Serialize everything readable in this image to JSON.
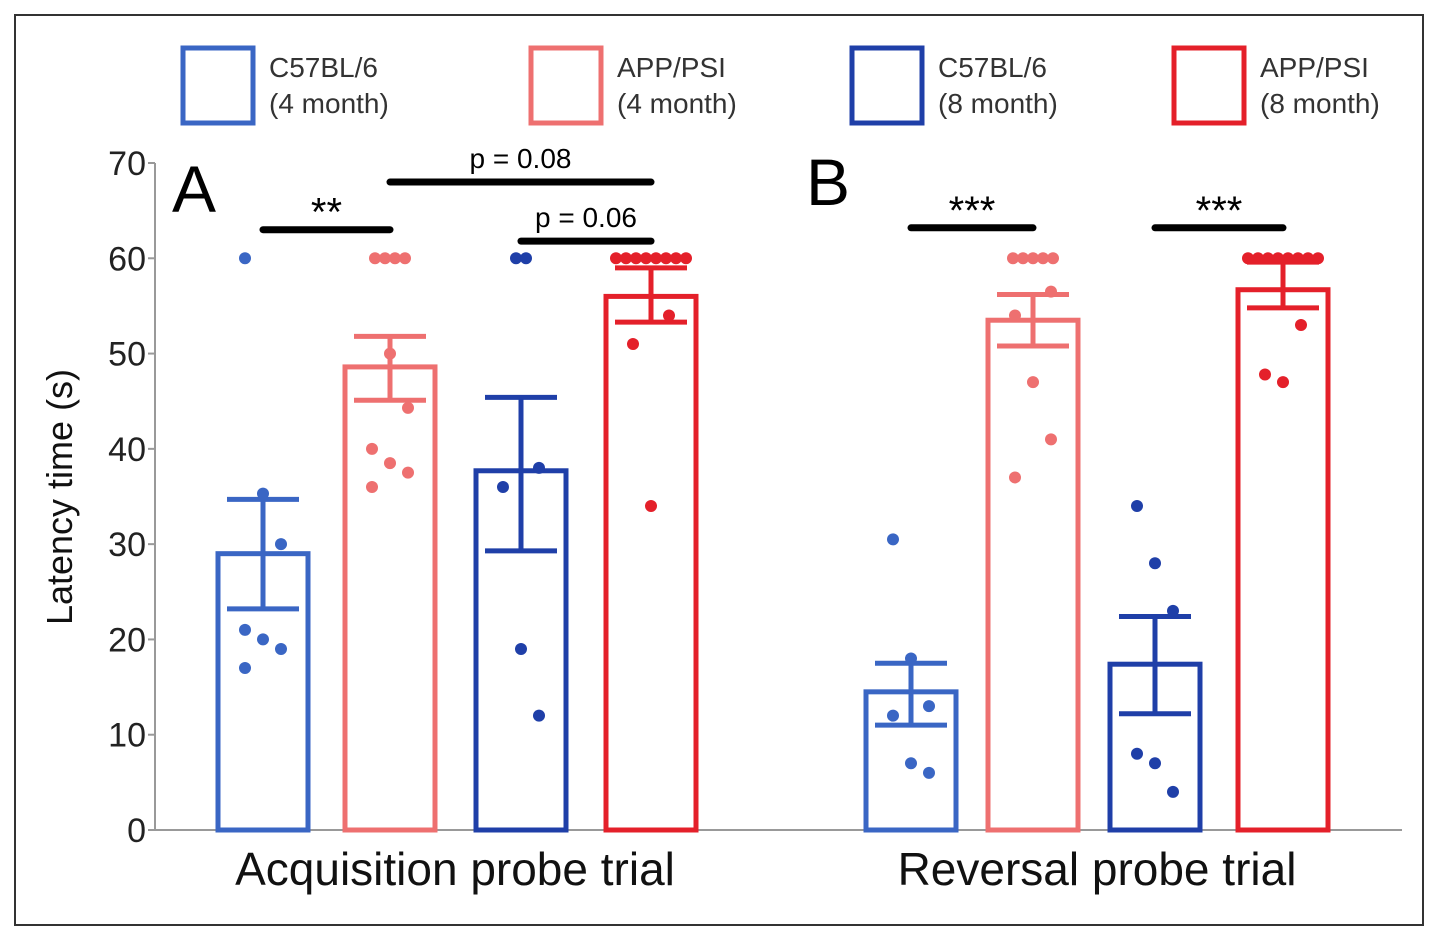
{
  "chart_data": {
    "type": "bar",
    "ylabel": "Latency time (s)",
    "ylim": [
      0,
      70
    ],
    "yticks": [
      0,
      10,
      20,
      30,
      40,
      50,
      60,
      70
    ],
    "grid": false,
    "legend_placement": "top",
    "legend": [
      {
        "line1": "C57BL/6",
        "line2": "(4 month)",
        "color": "#3a66c4"
      },
      {
        "line1": "APP/PSI",
        "line2": "(4 month)",
        "color": "#ee7070"
      },
      {
        "line1": "C57BL/6",
        "line2": "(8 month)",
        "color": "#1f3fa8"
      },
      {
        "line1": "APP/PSI",
        "line2": "(8 month)",
        "color": "#e4202a"
      }
    ],
    "panels": [
      {
        "letter": "A",
        "xlabel": "Acquisition probe trial",
        "bars": [
          {
            "mean": 29,
            "err_high": 34.7,
            "err_low": 23.2,
            "points": [
              60,
              35.3,
              30,
              21,
              20,
              19,
              17
            ]
          },
          {
            "mean": 48.6,
            "err_high": 51.8,
            "err_low": 45.1,
            "points": [
              60,
              60,
              60,
              60,
              50,
              44.3,
              40,
              38.5,
              37.5,
              36
            ]
          },
          {
            "mean": 37.7,
            "err_high": 45.4,
            "err_low": 29.3,
            "points": [
              60,
              60,
              38,
              36,
              19,
              12
            ]
          },
          {
            "mean": 56,
            "err_high": 59,
            "err_low": 53.3,
            "points": [
              60,
              60,
              60,
              60,
              60,
              60,
              60,
              60,
              54,
              51,
              34
            ]
          }
        ],
        "significance": [
          {
            "label": "**",
            "from": 0,
            "to": 1,
            "level": 63
          },
          {
            "label": "p = 0.08",
            "from": 1,
            "to": 3,
            "level": 68
          },
          {
            "label": "p = 0.06",
            "from": 2,
            "to": 3,
            "level": 61.8
          }
        ]
      },
      {
        "letter": "B",
        "xlabel": "Reversal probe trial",
        "bars": [
          {
            "mean": 14.5,
            "err_high": 17.5,
            "err_low": 11,
            "points": [
              30.5,
              18,
              13,
              12,
              7,
              6
            ]
          },
          {
            "mean": 53.5,
            "err_high": 56.2,
            "err_low": 50.8,
            "points": [
              60,
              60,
              60,
              60,
              60,
              56.5,
              54,
              47,
              41,
              37
            ]
          },
          {
            "mean": 17.4,
            "err_high": 22.4,
            "err_low": 12.2,
            "points": [
              34,
              28,
              23,
              8,
              7,
              4
            ]
          },
          {
            "mean": 56.7,
            "err_high": 59.6,
            "err_low": 54.8,
            "points": [
              60,
              60,
              60,
              60,
              60,
              60,
              60,
              60,
              53,
              47.8,
              47
            ]
          }
        ],
        "significance": [
          {
            "label": "***",
            "from": 0,
            "to": 1,
            "level": 63.2
          },
          {
            "label": "***",
            "from": 2,
            "to": 3,
            "level": 63.2
          }
        ]
      }
    ]
  }
}
